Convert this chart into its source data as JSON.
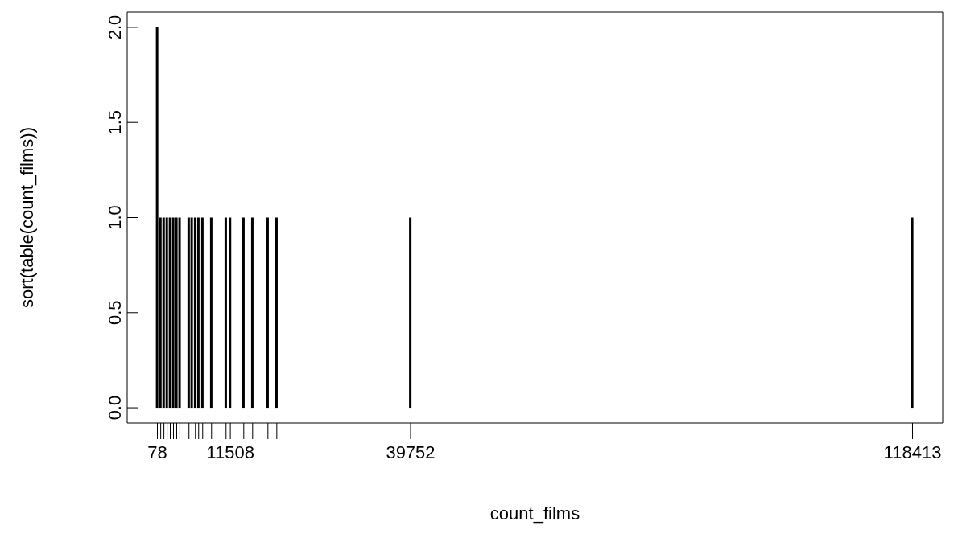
{
  "chart_data": {
    "type": "bar",
    "xlabel": "count_films",
    "ylabel": "sort(table(count_films))",
    "color": "#000000",
    "x": [
      78,
      600,
      1100,
      1600,
      2100,
      2600,
      3100,
      3600,
      5027,
      5500,
      6038,
      6543,
      7174,
      8563,
      10836,
      11508,
      13613,
      15002,
      17401,
      18790,
      39752,
      118413
    ],
    "values": [
      2,
      1,
      1,
      1,
      1,
      1,
      1,
      1,
      1,
      1,
      1,
      1,
      1,
      1,
      1,
      1,
      1,
      1,
      1,
      1,
      1,
      1
    ],
    "xlim": [
      -4655,
      123146
    ],
    "ylim": [
      -0.08,
      2.08
    ],
    "xticks": [
      78,
      11508,
      39752,
      118413
    ],
    "yticks": [
      {
        "value": 0,
        "label": "0.0"
      },
      {
        "value": 0.5,
        "label": "0.5"
      },
      {
        "value": 1,
        "label": "1.0"
      },
      {
        "value": 1.5,
        "label": "1.5"
      },
      {
        "value": 2,
        "label": "2.0"
      }
    ],
    "grid": false,
    "legend": false
  }
}
